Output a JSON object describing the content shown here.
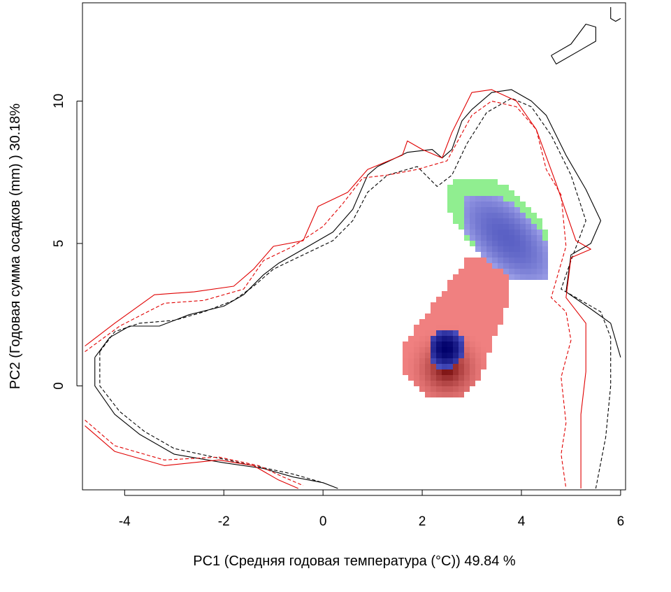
{
  "chart_data": {
    "type": "heatmap",
    "title": "",
    "xlabel": "PC1 (Средняя годовая температура (°C)) 49.84 %",
    "ylabel": "PC2 (Годовая сумма осадков  (mm) ) 30.18%",
    "xlim": [
      -4.85,
      6.1
    ],
    "ylim": [
      -3.65,
      13.45
    ],
    "xticks": [
      -4,
      -2,
      0,
      2,
      4,
      6
    ],
    "yticks": [
      0,
      5,
      10
    ],
    "xtick_labels": [
      "-4",
      "-2",
      "0",
      "2",
      "4",
      "6"
    ],
    "ytick_labels": [
      "0",
      "5",
      "10"
    ],
    "grid": false,
    "density_layers": [
      {
        "color": "#f08080",
        "peak_color": "#6a0000",
        "fill": "red density",
        "center": [
          2.5,
          0.6
        ],
        "extent_x": [
          1.7,
          3.7
        ],
        "extent_y": [
          -0.85,
          4.4
        ]
      },
      {
        "color": "#90ee90",
        "fill": "green overlap",
        "center": [
          3.65,
          5.8
        ],
        "extent_x": [
          2.6,
          4.45
        ],
        "extent_y": [
          4.3,
          7.2
        ]
      },
      {
        "color": "#7b7fd8",
        "fill": "blue density",
        "center": [
          3.8,
          5.4
        ],
        "extent_x": [
          2.85,
          4.45
        ],
        "extent_y": [
          3.75,
          6.5
        ]
      },
      {
        "color": "#00006a",
        "fill": "dark blue core",
        "center": [
          2.5,
          1.3
        ],
        "extent_x": [
          2.05,
          2.85
        ],
        "extent_y": [
          0.65,
          1.9
        ]
      }
    ],
    "contours": [
      {
        "name": "",
        "color": "#000000",
        "dash": "solid",
        "points": [
          [
            -4.6,
            1.0
          ],
          [
            -4.3,
            1.7
          ],
          [
            -3.9,
            2.1
          ],
          [
            -3.3,
            2.1
          ],
          [
            -2.7,
            2.5
          ],
          [
            -2.0,
            2.8
          ],
          [
            -1.6,
            3.2
          ],
          [
            -1.2,
            3.9
          ],
          [
            -0.9,
            4.3
          ],
          [
            -0.4,
            4.8
          ],
          [
            0.2,
            5.4
          ],
          [
            0.6,
            6.2
          ],
          [
            0.9,
            7.4
          ],
          [
            1.1,
            7.7
          ],
          [
            1.7,
            8.2
          ],
          [
            2.2,
            8.3
          ],
          [
            2.4,
            8.0
          ],
          [
            2.6,
            8.3
          ],
          [
            2.8,
            9.3
          ],
          [
            3.0,
            9.7
          ],
          [
            3.4,
            10.3
          ],
          [
            3.8,
            10.4
          ],
          [
            4.2,
            10.0
          ],
          [
            4.5,
            9.5
          ],
          [
            4.9,
            8.1
          ],
          [
            5.3,
            6.9
          ],
          [
            5.6,
            5.8
          ],
          [
            5.4,
            5.0
          ],
          [
            5.0,
            4.6
          ],
          [
            4.9,
            3.3
          ],
          [
            5.4,
            2.7
          ],
          [
            5.8,
            2.2
          ],
          [
            6.0,
            1.0
          ]
        ]
      },
      {
        "name": "",
        "color": "#000000",
        "dash": "solid",
        "points": [
          [
            -4.6,
            1.0
          ],
          [
            -4.6,
            0.0
          ],
          [
            -4.2,
            -1.0
          ],
          [
            -3.7,
            -1.7
          ],
          [
            -3.0,
            -2.4
          ],
          [
            -2.0,
            -2.7
          ],
          [
            -1.2,
            -2.9
          ],
          [
            -0.6,
            -3.2
          ],
          [
            0.0,
            -3.4
          ],
          [
            0.3,
            -3.6
          ]
        ]
      },
      {
        "name": "",
        "color": "#000000",
        "dash": "dashed",
        "points": [
          [
            -4.5,
            1.2
          ],
          [
            -4.2,
            1.9
          ],
          [
            -3.7,
            2.2
          ],
          [
            -3.0,
            2.3
          ],
          [
            -2.4,
            2.6
          ],
          [
            -1.8,
            3.0
          ],
          [
            -1.4,
            3.5
          ],
          [
            -1.0,
            4.1
          ],
          [
            -0.4,
            4.6
          ],
          [
            0.2,
            5.1
          ],
          [
            0.6,
            5.8
          ],
          [
            0.9,
            6.8
          ],
          [
            1.3,
            7.4
          ],
          [
            1.9,
            7.7
          ],
          [
            2.3,
            7.0
          ],
          [
            2.6,
            7.4
          ],
          [
            2.9,
            8.5
          ],
          [
            3.3,
            9.6
          ],
          [
            3.8,
            10.1
          ],
          [
            4.2,
            9.8
          ],
          [
            4.6,
            8.8
          ],
          [
            5.0,
            7.4
          ],
          [
            5.3,
            5.8
          ],
          [
            5.0,
            4.4
          ],
          [
            4.8,
            3.4
          ],
          [
            5.2,
            3.0
          ],
          [
            5.6,
            2.6
          ],
          [
            5.8,
            1.7
          ],
          [
            5.8,
            0.0
          ],
          [
            5.7,
            -1.8
          ],
          [
            5.5,
            -3.6
          ]
        ]
      },
      {
        "name": "",
        "color": "#000000",
        "dash": "dashed",
        "points": [
          [
            -4.5,
            1.2
          ],
          [
            -4.5,
            0.0
          ],
          [
            -4.1,
            -0.9
          ],
          [
            -3.6,
            -1.6
          ],
          [
            -3.0,
            -2.2
          ],
          [
            -2.2,
            -2.5
          ],
          [
            -1.4,
            -2.8
          ],
          [
            -0.6,
            -3.1
          ],
          [
            0.0,
            -3.4
          ]
        ]
      },
      {
        "name": "",
        "color": "#e00000",
        "dash": "solid",
        "points": [
          [
            -4.8,
            1.4
          ],
          [
            -4.2,
            2.2
          ],
          [
            -3.4,
            3.2
          ],
          [
            -2.6,
            3.3
          ],
          [
            -1.8,
            3.5
          ],
          [
            -1.4,
            4.1
          ],
          [
            -1.0,
            4.9
          ],
          [
            -0.4,
            5.1
          ],
          [
            -0.1,
            6.3
          ],
          [
            0.5,
            6.8
          ],
          [
            0.9,
            7.6
          ],
          [
            1.6,
            8.1
          ],
          [
            1.7,
            8.6
          ],
          [
            2.0,
            8.3
          ],
          [
            2.4,
            8.0
          ],
          [
            2.6,
            8.9
          ],
          [
            3.0,
            10.3
          ],
          [
            3.4,
            10.4
          ],
          [
            3.9,
            10.0
          ],
          [
            4.3,
            9.0
          ],
          [
            4.7,
            7.1
          ],
          [
            5.1,
            5.1
          ],
          [
            5.4,
            4.8
          ],
          [
            5.0,
            4.5
          ],
          [
            4.9,
            3.1
          ],
          [
            5.3,
            2.2
          ],
          [
            5.3,
            0.5
          ],
          [
            5.2,
            -1.0
          ],
          [
            5.2,
            -3.6
          ]
        ]
      },
      {
        "name": "",
        "color": "#e00000",
        "dash": "solid",
        "points": [
          [
            -4.8,
            -1.4
          ],
          [
            -4.2,
            -2.3
          ],
          [
            -3.2,
            -2.8
          ],
          [
            -2.1,
            -2.6
          ],
          [
            -1.4,
            -2.8
          ],
          [
            -0.9,
            -3.3
          ],
          [
            -0.5,
            -3.6
          ]
        ]
      },
      {
        "name": "",
        "color": "#e00000",
        "dash": "dashed",
        "points": [
          [
            -4.8,
            1.2
          ],
          [
            -4.1,
            2.1
          ],
          [
            -3.2,
            2.9
          ],
          [
            -2.4,
            3.0
          ],
          [
            -1.6,
            3.4
          ],
          [
            -1.2,
            4.4
          ],
          [
            -0.6,
            4.9
          ],
          [
            0.0,
            5.6
          ],
          [
            0.4,
            6.4
          ],
          [
            0.8,
            7.3
          ],
          [
            1.3,
            7.4
          ],
          [
            1.9,
            7.6
          ],
          [
            2.5,
            7.9
          ],
          [
            3.0,
            9.5
          ],
          [
            3.4,
            10.0
          ],
          [
            3.9,
            9.8
          ],
          [
            4.3,
            9.0
          ],
          [
            4.5,
            7.6
          ],
          [
            4.8,
            6.7
          ],
          [
            4.9,
            4.9
          ],
          [
            4.6,
            3.1
          ],
          [
            4.9,
            2.6
          ],
          [
            5.0,
            1.6
          ],
          [
            4.8,
            0.3
          ],
          [
            4.9,
            -1.3
          ],
          [
            4.8,
            -2.4
          ],
          [
            4.9,
            -3.6
          ]
        ]
      },
      {
        "name": "",
        "color": "#e00000",
        "dash": "dashed",
        "points": [
          [
            -4.8,
            -1.2
          ],
          [
            -4.2,
            -2.1
          ],
          [
            -3.2,
            -2.6
          ],
          [
            -2.1,
            -2.5
          ],
          [
            -1.3,
            -2.8
          ],
          [
            -0.8,
            -3.2
          ],
          [
            -0.4,
            -3.5
          ]
        ]
      },
      {
        "name": "",
        "color": "#000000",
        "dash": "solid",
        "points": [
          [
            4.6,
            11.6
          ],
          [
            5.0,
            12.0
          ],
          [
            5.3,
            12.7
          ],
          [
            5.5,
            12.6
          ],
          [
            5.5,
            12.1
          ],
          [
            5.2,
            11.8
          ],
          [
            4.7,
            11.3
          ],
          [
            4.6,
            11.6
          ]
        ]
      },
      {
        "name": "",
        "color": "#000000",
        "dash": "solid",
        "points": [
          [
            5.8,
            13.3
          ],
          [
            5.8,
            12.9
          ],
          [
            5.9,
            12.8
          ],
          [
            6.0,
            12.9
          ]
        ]
      }
    ]
  }
}
